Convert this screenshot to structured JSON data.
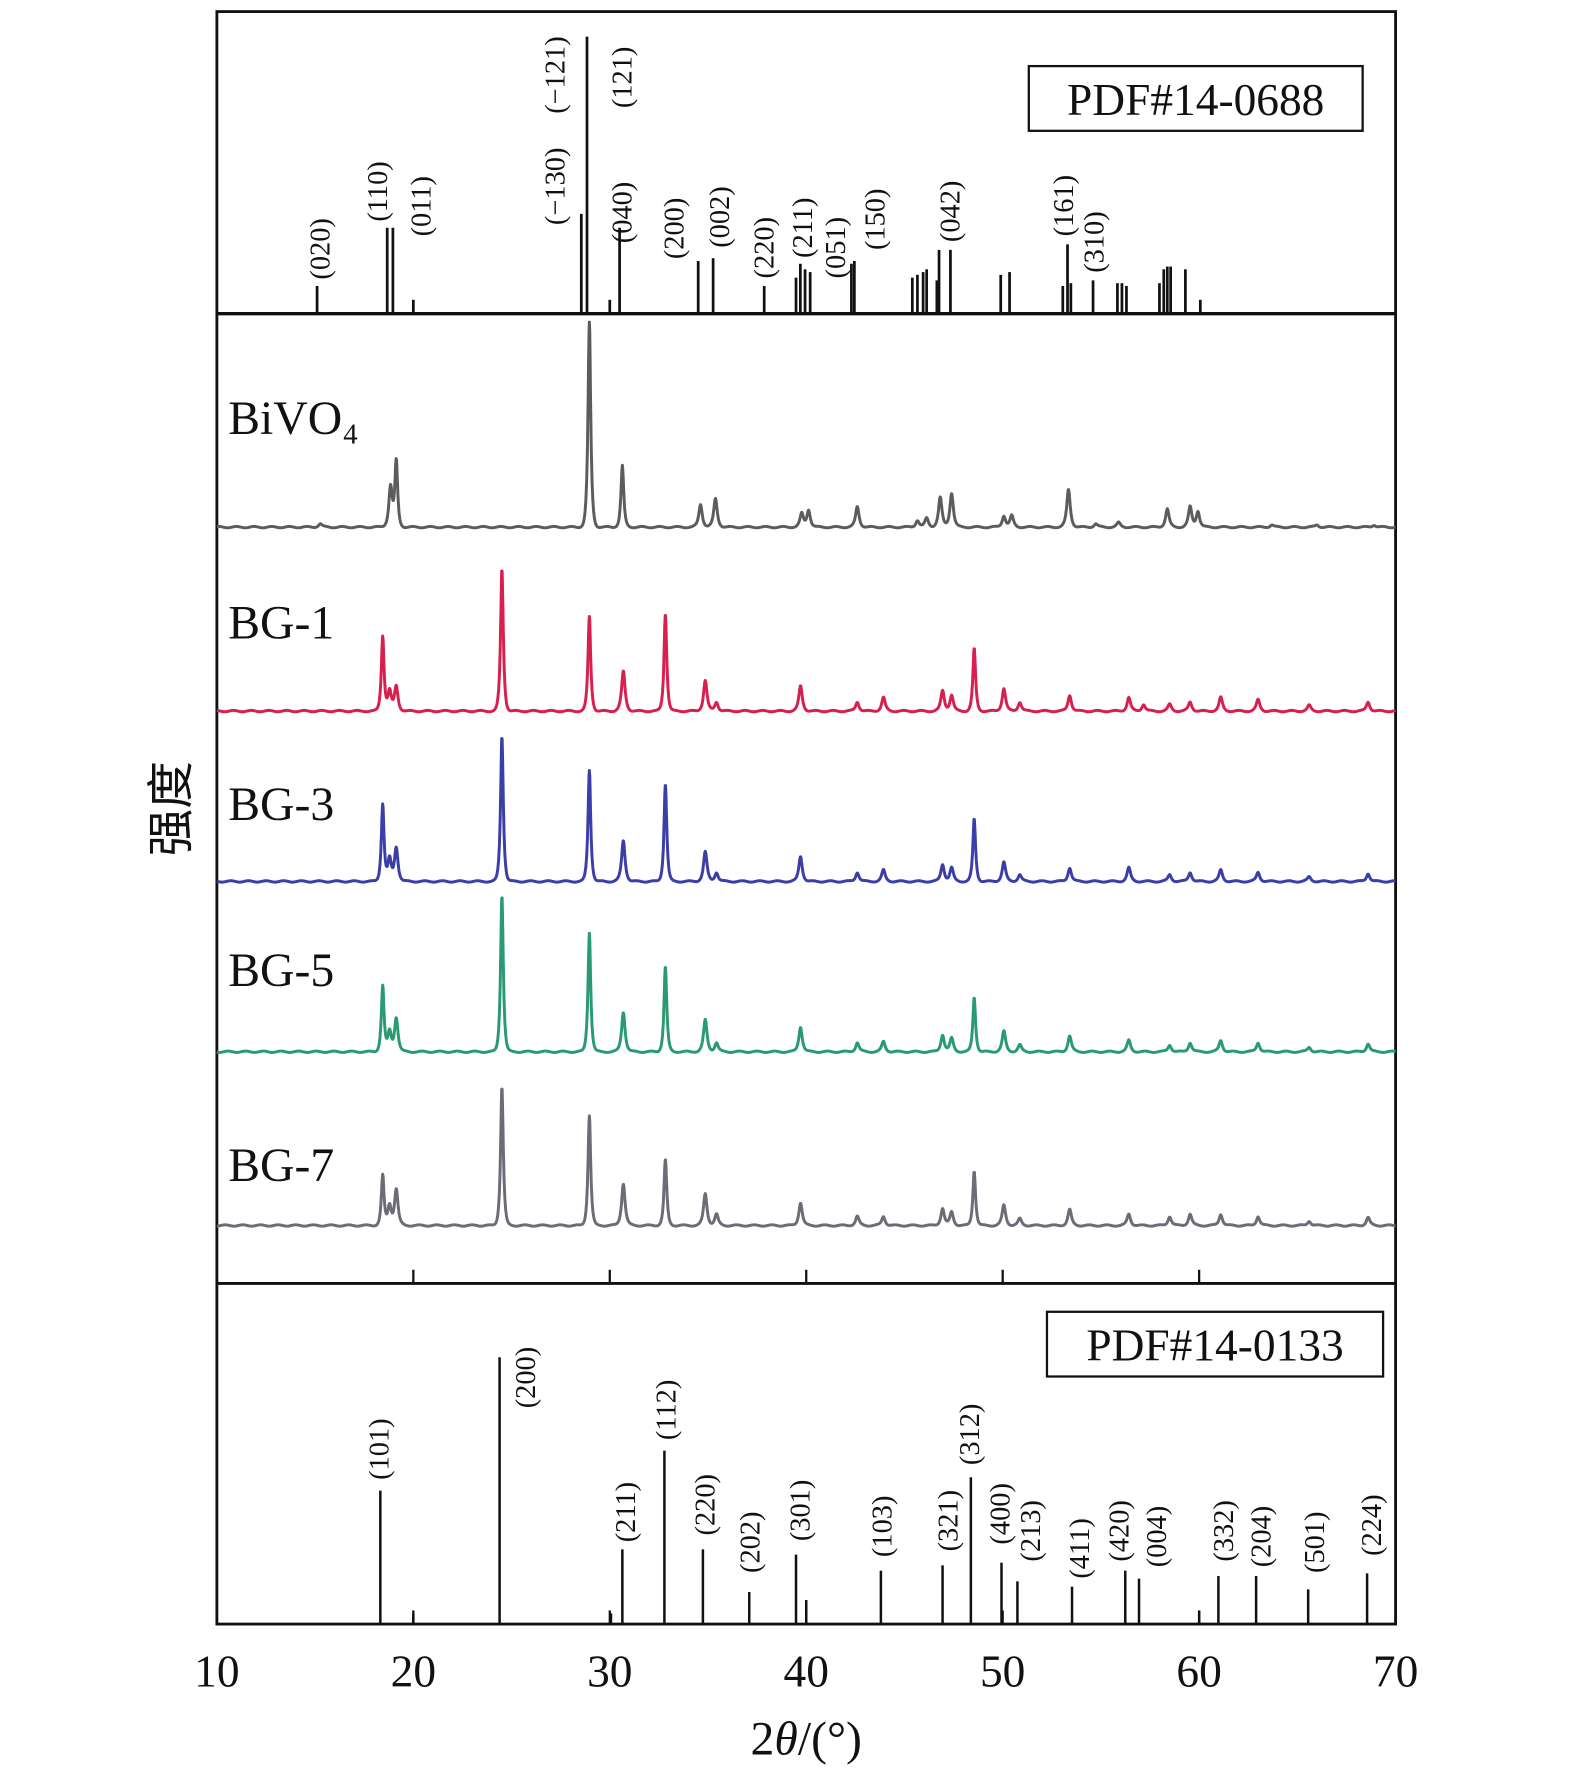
{
  "chart_data": {
    "type": "line",
    "title": "",
    "xlabel": "2θ/(°)",
    "xlabel_parts": {
      "pre": "2",
      "theta": "θ",
      "post": "/(°)"
    },
    "ylabel": "强度",
    "xlim": [
      10,
      70
    ],
    "xticks": [
      10,
      20,
      30,
      40,
      50,
      60,
      70
    ],
    "grid": false,
    "reference_top": {
      "name": "PDF#14-0688",
      "sticks": [
        [
          15.1,
          10
        ],
        [
          18.67,
          31
        ],
        [
          18.96,
          31
        ],
        [
          20.0,
          5
        ],
        [
          28.55,
          36
        ],
        [
          28.84,
          100
        ],
        [
          30.0,
          5
        ],
        [
          30.5,
          31
        ],
        [
          34.5,
          19
        ],
        [
          35.26,
          20
        ],
        [
          37.86,
          10
        ],
        [
          39.48,
          13
        ],
        [
          39.7,
          18
        ],
        [
          39.94,
          16
        ],
        [
          40.2,
          15
        ],
        [
          42.3,
          18
        ],
        [
          42.45,
          19
        ],
        [
          45.4,
          13
        ],
        [
          45.66,
          14
        ],
        [
          45.95,
          15
        ],
        [
          46.13,
          16
        ],
        [
          46.65,
          12
        ],
        [
          46.76,
          23
        ],
        [
          47.34,
          23
        ],
        [
          49.9,
          14
        ],
        [
          50.35,
          15
        ],
        [
          53.06,
          10
        ],
        [
          53.3,
          25
        ],
        [
          53.47,
          11
        ],
        [
          54.6,
          12
        ],
        [
          55.84,
          11
        ],
        [
          56.07,
          11
        ],
        [
          56.3,
          10
        ],
        [
          57.98,
          11
        ],
        [
          58.2,
          16
        ],
        [
          58.38,
          17
        ],
        [
          58.55,
          17
        ],
        [
          59.3,
          16
        ],
        [
          60.06,
          5
        ]
      ],
      "labels": [
        "(020)",
        "(110)",
        "(011)",
        "(−130)",
        "(−121)",
        "(040)",
        "(121)",
        "(200)",
        "(002)",
        "(220)",
        "(211)",
        "(051)",
        "(150)",
        "(042)",
        "(161)",
        "(310)"
      ]
    },
    "reference_bottom": {
      "name": "PDF#14-0133",
      "sticks": [
        [
          18.32,
          50
        ],
        [
          20.0,
          4
        ],
        [
          24.39,
          100
        ],
        [
          30.06,
          4
        ],
        [
          30.64,
          28
        ],
        [
          32.78,
          65
        ],
        [
          34.74,
          28
        ],
        [
          37.1,
          12
        ],
        [
          39.48,
          26
        ],
        [
          40.0,
          9
        ],
        [
          43.8,
          20
        ],
        [
          46.94,
          22
        ],
        [
          48.38,
          55
        ],
        [
          49.94,
          23
        ],
        [
          50.75,
          16
        ],
        [
          53.53,
          14
        ],
        [
          56.24,
          20
        ],
        [
          56.94,
          17
        ],
        [
          60.0,
          5
        ],
        [
          60.98,
          18
        ],
        [
          62.9,
          18
        ],
        [
          65.55,
          13
        ],
        [
          68.55,
          19
        ]
      ],
      "labels": [
        "(101)",
        "(200)",
        "(211)",
        "(112)",
        "(220)",
        "(202)",
        "(301)",
        "(103)",
        "(321)",
        "(312)",
        "(400)",
        "(213)",
        "(411)",
        "(420)",
        "(004)",
        "(332)",
        "(204)",
        "(501)",
        "(224)"
      ]
    },
    "series": [
      {
        "name": "BiVO₄",
        "color": "#5c5c5c",
        "offset": 666,
        "peaks": [
          [
            15.26,
            3
          ],
          [
            18.84,
            36
          ],
          [
            19.13,
            58
          ],
          [
            28.96,
            180
          ],
          [
            30.64,
            54
          ],
          [
            34.62,
            20
          ],
          [
            35.38,
            25
          ],
          [
            39.77,
            12
          ],
          [
            40.12,
            15
          ],
          [
            42.6,
            18
          ],
          [
            45.66,
            6
          ],
          [
            46.13,
            8
          ],
          [
            46.82,
            26
          ],
          [
            47.4,
            30
          ],
          [
            50.06,
            10
          ],
          [
            50.46,
            10
          ],
          [
            53.35,
            33
          ],
          [
            54.74,
            3
          ],
          [
            55.9,
            4
          ],
          [
            58.38,
            16
          ],
          [
            59.54,
            18
          ],
          [
            59.94,
            14
          ],
          [
            63.7,
            2
          ],
          [
            66.0,
            2
          ],
          [
            68.9,
            2
          ]
        ]
      },
      {
        "name": "BG-1",
        "color": "#d8204f",
        "offset": 504,
        "peaks": [
          [
            18.44,
            66
          ],
          [
            18.79,
            18
          ],
          [
            19.13,
            22
          ],
          [
            24.51,
            125
          ],
          [
            28.96,
            83
          ],
          [
            30.69,
            35
          ],
          [
            32.83,
            86
          ],
          [
            34.86,
            27
          ],
          [
            35.43,
            8
          ],
          [
            39.71,
            22
          ],
          [
            42.6,
            8
          ],
          [
            43.93,
            12
          ],
          [
            46.94,
            18
          ],
          [
            47.4,
            14
          ],
          [
            48.55,
            55
          ],
          [
            50.06,
            20
          ],
          [
            50.87,
            8
          ],
          [
            53.41,
            14
          ],
          [
            56.42,
            12
          ],
          [
            57.17,
            6
          ],
          [
            58.5,
            6
          ],
          [
            59.54,
            8
          ],
          [
            61.1,
            12
          ],
          [
            63.0,
            10
          ],
          [
            65.6,
            5
          ],
          [
            68.6,
            8
          ]
        ]
      },
      {
        "name": "BG-3",
        "color": "#3a3ea8",
        "offset": 354,
        "peaks": [
          [
            18.44,
            68
          ],
          [
            18.79,
            20
          ],
          [
            19.13,
            30
          ],
          [
            24.51,
            128
          ],
          [
            28.96,
            98
          ],
          [
            30.69,
            36
          ],
          [
            32.83,
            86
          ],
          [
            34.86,
            26
          ],
          [
            35.43,
            8
          ],
          [
            39.71,
            22
          ],
          [
            42.6,
            8
          ],
          [
            43.93,
            10
          ],
          [
            46.94,
            15
          ],
          [
            47.4,
            12
          ],
          [
            48.55,
            55
          ],
          [
            50.06,
            17
          ],
          [
            50.87,
            6
          ],
          [
            53.41,
            12
          ],
          [
            56.42,
            12
          ],
          [
            58.5,
            6
          ],
          [
            59.54,
            8
          ],
          [
            61.1,
            10
          ],
          [
            63.0,
            8
          ],
          [
            65.6,
            4
          ],
          [
            68.6,
            7
          ]
        ]
      },
      {
        "name": "BG-5",
        "color": "#2a9a70",
        "offset": 204,
        "peaks": [
          [
            18.44,
            58
          ],
          [
            18.79,
            18
          ],
          [
            19.13,
            30
          ],
          [
            24.51,
            138
          ],
          [
            28.96,
            105
          ],
          [
            30.69,
            35
          ],
          [
            32.83,
            75
          ],
          [
            34.86,
            28
          ],
          [
            35.43,
            8
          ],
          [
            39.71,
            22
          ],
          [
            42.6,
            8
          ],
          [
            43.93,
            9
          ],
          [
            46.94,
            15
          ],
          [
            47.4,
            12
          ],
          [
            48.55,
            48
          ],
          [
            50.06,
            18
          ],
          [
            50.87,
            6
          ],
          [
            53.41,
            14
          ],
          [
            56.42,
            10
          ],
          [
            58.5,
            6
          ],
          [
            59.54,
            8
          ],
          [
            61.1,
            10
          ],
          [
            63.0,
            8
          ],
          [
            65.6,
            4
          ],
          [
            68.6,
            7
          ]
        ]
      },
      {
        "name": "BG-7",
        "color": "#6e6a78",
        "offset": 51,
        "peaks": [
          [
            18.44,
            44
          ],
          [
            18.79,
            18
          ],
          [
            19.13,
            32
          ],
          [
            24.51,
            122
          ],
          [
            28.96,
            97
          ],
          [
            30.69,
            37
          ],
          [
            32.83,
            58
          ],
          [
            34.86,
            28
          ],
          [
            35.43,
            10
          ],
          [
            39.71,
            20
          ],
          [
            42.6,
            8
          ],
          [
            43.93,
            8
          ],
          [
            46.94,
            15
          ],
          [
            47.4,
            12
          ],
          [
            48.55,
            48
          ],
          [
            50.06,
            18
          ],
          [
            50.87,
            6
          ],
          [
            53.41,
            14
          ],
          [
            56.42,
            10
          ],
          [
            58.5,
            8
          ],
          [
            59.54,
            10
          ],
          [
            61.1,
            10
          ],
          [
            63.0,
            8
          ],
          [
            65.6,
            4
          ],
          [
            68.6,
            7
          ]
        ]
      }
    ]
  }
}
